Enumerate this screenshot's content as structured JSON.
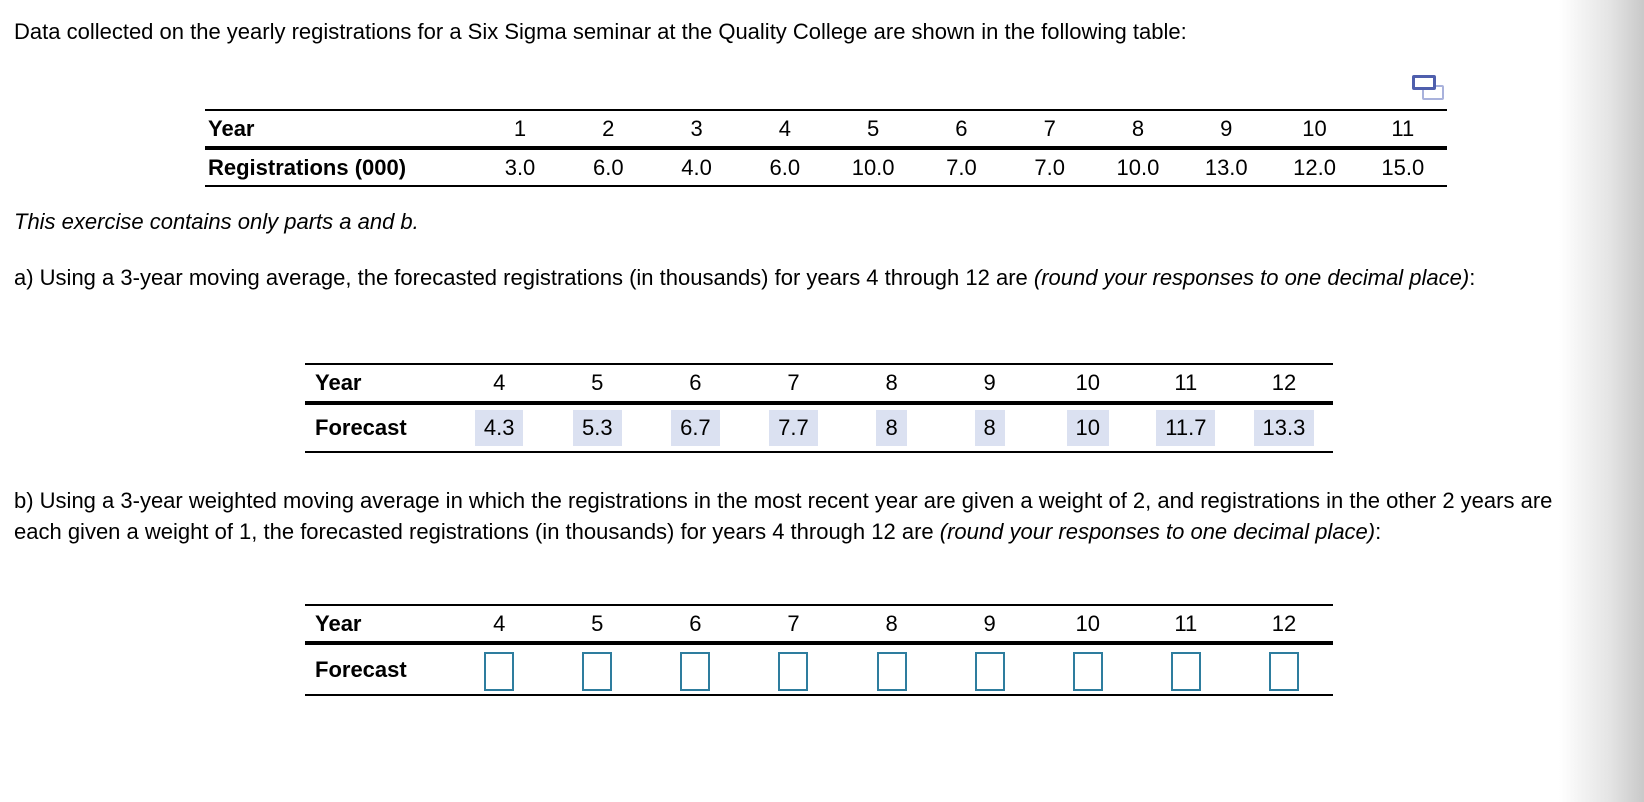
{
  "intro": "Data collected on the yearly registrations for a Six Sigma seminar at the Quality College are shown in the following table:",
  "exercise_note": "This exercise contains only parts a and b.",
  "icons": {
    "copy_table": "copy-icon"
  },
  "colors": {
    "answer_highlight": "#dbe1f1",
    "input_border": "#2e7d9e",
    "copy_icon_dark": "#4f5fad",
    "copy_icon_light": "#a9b2dc"
  },
  "data_table": {
    "row1_label": "Year",
    "row2_label": "Registrations (000)",
    "years": [
      "1",
      "2",
      "3",
      "4",
      "5",
      "6",
      "7",
      "8",
      "9",
      "10",
      "11"
    ],
    "registrations": [
      "3.0",
      "6.0",
      "4.0",
      "6.0",
      "10.0",
      "7.0",
      "7.0",
      "10.0",
      "13.0",
      "12.0",
      "15.0"
    ]
  },
  "part_a": {
    "text_main": "a) Using a 3-year moving average, the forecasted registrations (in thousands) for years 4 through 12 are ",
    "text_italic": "(round your responses to one decimal place)",
    "text_suffix": ":"
  },
  "table_a": {
    "row1_label": "Year",
    "row2_label": "Forecast",
    "years": [
      "4",
      "5",
      "6",
      "7",
      "8",
      "9",
      "10",
      "11",
      "12"
    ],
    "forecasts": [
      "4.3",
      "5.3",
      "6.7",
      "7.7",
      "8",
      "8",
      "10",
      "11.7",
      "13.3"
    ]
  },
  "part_b": {
    "text_main": "b) Using a 3-year weighted moving average in which the registrations in the most recent year are given a weight of 2, and registrations in the other 2 years are each given a weight of 1, the forecasted registrations (in thousands) for years 4 through 12 are ",
    "text_italic": "(round your responses to one decimal place)",
    "text_suffix": ":"
  },
  "table_b": {
    "row1_label": "Year",
    "row2_label": "Forecast",
    "years": [
      "4",
      "5",
      "6",
      "7",
      "8",
      "9",
      "10",
      "11",
      "12"
    ]
  }
}
